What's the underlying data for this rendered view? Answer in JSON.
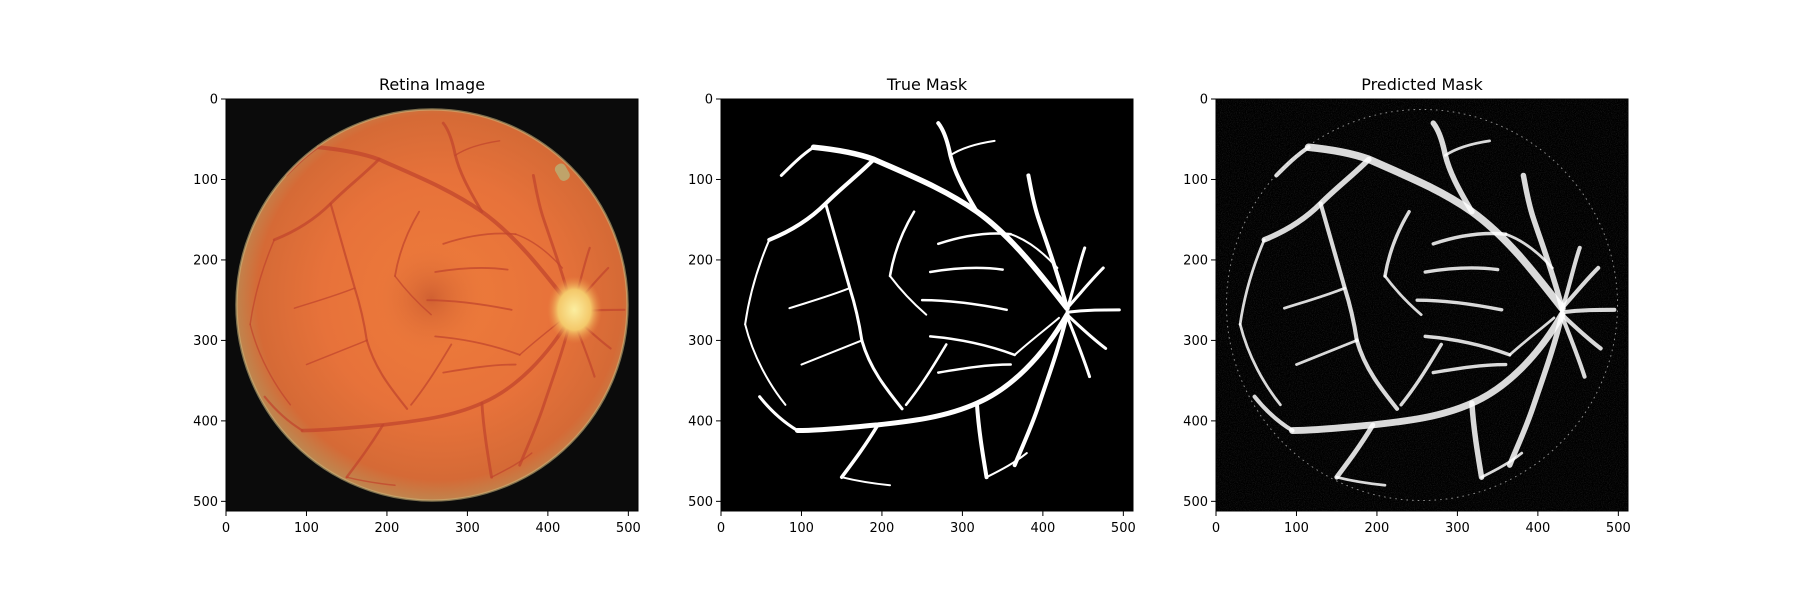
{
  "panels": [
    {
      "title": "Retina Image",
      "xticks": [
        "0",
        "100",
        "200",
        "300",
        "400",
        "500"
      ],
      "yticks": [
        "0",
        "100",
        "200",
        "300",
        "400",
        "500"
      ]
    },
    {
      "title": "True Mask",
      "xticks": [
        "0",
        "100",
        "200",
        "300",
        "400",
        "500"
      ],
      "yticks": [
        "0",
        "100",
        "200",
        "300",
        "400",
        "500"
      ]
    },
    {
      "title": "Predicted Mask",
      "xticks": [
        "0",
        "100",
        "200",
        "300",
        "400",
        "500"
      ],
      "yticks": [
        "0",
        "100",
        "200",
        "300",
        "400",
        "500"
      ]
    }
  ],
  "colors": {
    "background": "#ffffff",
    "image_background": "#0b0b0b",
    "fundus_center": "#f07a35",
    "fundus_edge": "#b96a3a",
    "vessel": "#c2452e",
    "optic_disc": "#f5e38a",
    "mask_background": "#000000",
    "mask_vessel": "#ffffff"
  }
}
